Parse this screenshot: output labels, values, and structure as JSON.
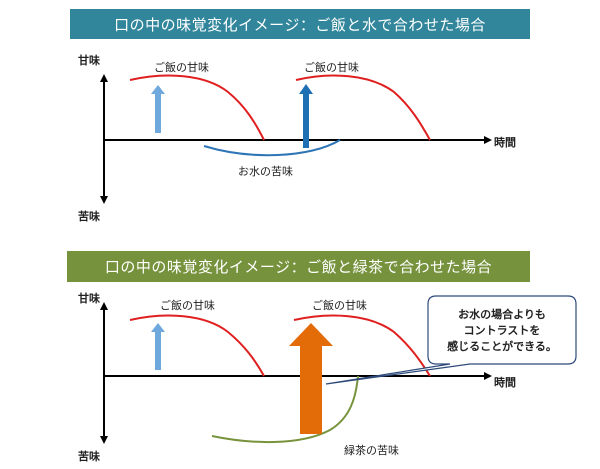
{
  "panels": [
    {
      "banner": "口の中の味覚変化イメージ：ご飯と水で合わせた場合",
      "axis_up": "甘味",
      "axis_down": "苦味",
      "axis_right": "時間",
      "sweet_label_1": "ご飯の甘味",
      "sweet_label_2": "ご飯の甘味",
      "bitter_label": "お水の苦味",
      "colors": {
        "banner": "#31869b",
        "sweet_curve": "#e02020",
        "bitter_curve": "#2e75b6",
        "arrow_light": "#6fa8dc",
        "arrow_dark": "#1f6fb5"
      }
    },
    {
      "banner": "口の中の味覚変化イメージ：ご飯と緑茶で合わせた場合",
      "axis_up": "甘味",
      "axis_down": "苦味",
      "axis_right": "時間",
      "sweet_label_1": "ご飯の甘味",
      "sweet_label_2": "ご飯の甘味",
      "bitter_label": "緑茶の苦味",
      "callout": [
        "お水の場合よりも",
        "コントラストを",
        "感じることができる。"
      ],
      "colors": {
        "banner": "#76923c",
        "sweet_curve": "#e02020",
        "bitter_curve": "#77933c",
        "arrow_light": "#6fa8dc",
        "arrow_big": "#e36c09"
      }
    }
  ]
}
